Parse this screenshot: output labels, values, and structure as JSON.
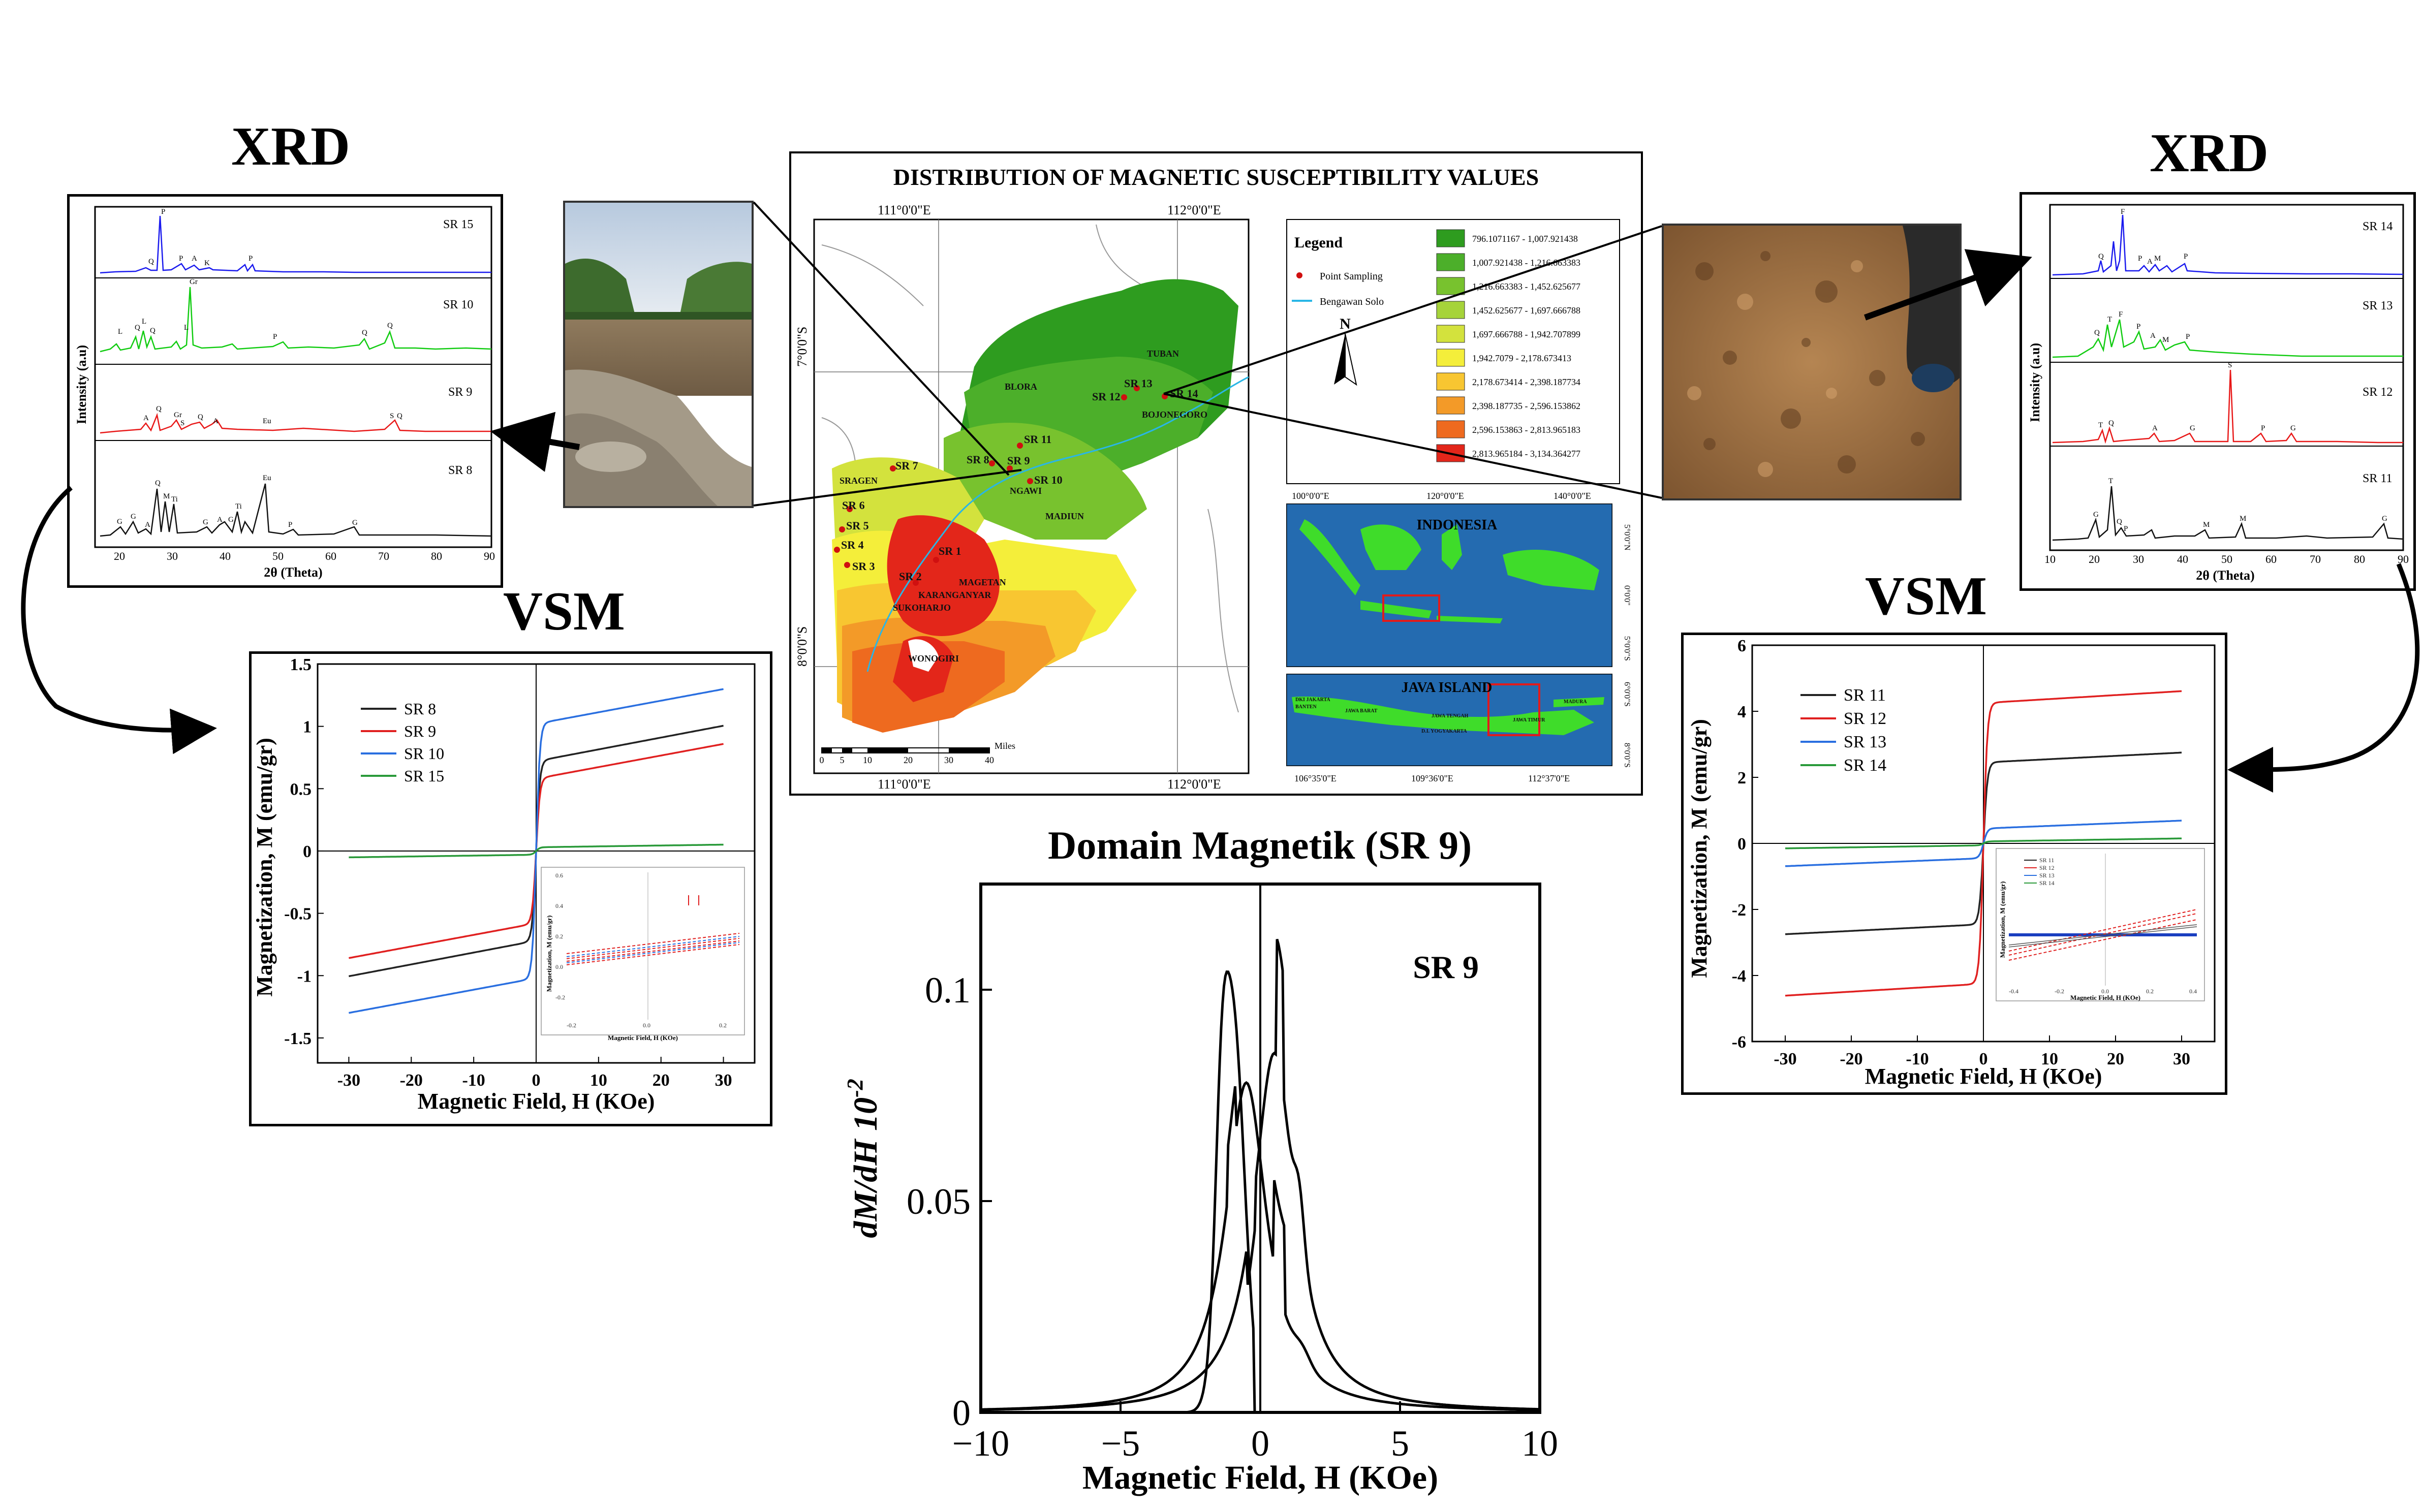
{
  "headings": {
    "xrd_left": "XRD",
    "xrd_right": "XRD",
    "vsm_left": "VSM",
    "vsm_right": "VSM",
    "domain": "Domain Magnetik (SR 9)"
  },
  "map": {
    "title": "DISTRIBUTION OF MAGNETIC SUSCEPTIBILITY VALUES",
    "lon_ticks": [
      "111°0'0\"E",
      "112°0'0\"E"
    ],
    "lat_ticks": [
      "7°0'0\"S",
      "8°0'0\"S"
    ],
    "legend_title": "Legend",
    "legend_point": "Point Sampling",
    "legend_river": "Bengawan Solo",
    "classes": [
      {
        "range": "796.1071167 - 1,007.921438",
        "color": "#2e9c1f"
      },
      {
        "range": "1,007.921438 - 1,216.663383",
        "color": "#4caf2a"
      },
      {
        "range": "1,216.663383 - 1,452.625677",
        "color": "#78c22e"
      },
      {
        "range": "1,452.625677 - 1,697.666788",
        "color": "#a6d33a"
      },
      {
        "range": "1,697.666788 - 1,942.707899",
        "color": "#d3e23d"
      },
      {
        "range": "1,942.7079 - 2,178.673413",
        "color": "#f4ee3a"
      },
      {
        "range": "2,178.673414 - 2,398.187734",
        "color": "#f8c631"
      },
      {
        "range": "2,398.187735 - 2,596.153862",
        "color": "#f39a28"
      },
      {
        "range": "2,596.153863 - 2,813.965183",
        "color": "#ee6a1f"
      },
      {
        "range": "2,813.965184 - 3,134.364277",
        "color": "#e3261a"
      }
    ],
    "places": [
      "TUBAN",
      "BLORA",
      "BOJONEGORO",
      "SRAGEN",
      "NGAWI",
      "MADIUN",
      "MAGETAN",
      "KARANGANYAR",
      "SUKOHARJO",
      "WONOGIRI"
    ],
    "samples": [
      "SR 1",
      "SR 2",
      "SR 3",
      "SR 4",
      "SR 5",
      "SR 6",
      "SR 7",
      "SR 8",
      "SR 9",
      "SR 10",
      "SR 11",
      "SR 12",
      "SR 13",
      "SR 14"
    ],
    "scale_label": "Miles",
    "scale_ticks": [
      "0",
      "5",
      "10",
      "20",
      "30",
      "40"
    ],
    "inset_indonesia": {
      "title": "INDONESIA",
      "lon_ticks": [
        "100°0'0\"E",
        "120°0'0\"E",
        "140°0'0\"E"
      ],
      "lat_ticks": [
        "5°0'0\"N",
        "0°0'0\"",
        "5°0'0\"S"
      ]
    },
    "inset_java": {
      "title": "JAVA ISLAND",
      "lon_ticks": [
        "106°35'0\"E",
        "109°36'0\"E",
        "112°37'0\"E"
      ],
      "lat_ticks": [
        "6°0'0\"S",
        "8°0'0\"S"
      ],
      "regions": [
        "DKI JAKARTA",
        "BANTEN",
        "JAWA BARAT",
        "JAWA TENGAH",
        "D.I. YOGYAKARTA",
        "JAWA TIMUR",
        "MADURA"
      ]
    }
  },
  "xrd_left": {
    "ylabel": "Intensity (a.u)",
    "xlabel": "2θ (Theta)",
    "x_ticks": [
      "20",
      "30",
      "40",
      "50",
      "60",
      "70",
      "80",
      "90"
    ],
    "series": [
      {
        "name": "SR 15",
        "color": "#1a1aee",
        "peaks_labels": [
          "Q",
          "P",
          "P",
          "A",
          "K",
          "P"
        ]
      },
      {
        "name": "SR 10",
        "color": "#11cc11",
        "peaks_labels": [
          "L",
          "Q",
          "L",
          "Q",
          "L",
          "Gr",
          "P",
          "Q",
          "Q"
        ]
      },
      {
        "name": "SR 9",
        "color": "#e81818",
        "peaks_labels": [
          "A",
          "Q",
          "Gr",
          "S",
          "Q",
          "A",
          "Eu",
          "S",
          "Q"
        ]
      },
      {
        "name": "SR 8",
        "color": "#111111",
        "peaks_labels": [
          "G",
          "G",
          "A",
          "Q",
          "M",
          "Ti",
          "G",
          "A",
          "G",
          "Ti",
          "Eu",
          "P",
          "G"
        ]
      }
    ]
  },
  "xrd_right": {
    "ylabel": "Intensity (a.u)",
    "xlabel": "2θ (Theta)",
    "x_ticks": [
      "10",
      "20",
      "30",
      "40",
      "50",
      "60",
      "70",
      "80",
      "90"
    ],
    "series": [
      {
        "name": "SR 14",
        "color": "#1a1aee",
        "peaks_labels": [
          "Q",
          "F",
          "P",
          "A",
          "M",
          "P"
        ]
      },
      {
        "name": "SR 13",
        "color": "#11cc11",
        "peaks_labels": [
          "Q",
          "T",
          "F",
          "P",
          "A",
          "M",
          "P"
        ]
      },
      {
        "name": "SR 12",
        "color": "#e81818",
        "peaks_labels": [
          "T",
          "Q",
          "A",
          "G",
          "S",
          "P",
          "G"
        ]
      },
      {
        "name": "SR 11",
        "color": "#111111",
        "peaks_labels": [
          "G",
          "T",
          "Q",
          "P",
          "M",
          "M",
          "G"
        ]
      }
    ]
  },
  "chart_data": [
    {
      "type": "line",
      "title": "VSM",
      "xlabel": "Magnetic Field, H (KOe)",
      "ylabel": "Magnetization, M (emu/gr)",
      "xlim": [
        -35,
        35
      ],
      "ylim": [
        -1.7,
        1.5
      ],
      "x_ticks": [
        -30,
        -20,
        -10,
        0,
        10,
        20,
        30
      ],
      "y_ticks": [
        -1.5,
        -1.0,
        -0.5,
        0.0,
        0.5,
        1.0,
        1.5
      ],
      "legend": "top-left",
      "series": [
        {
          "name": "SR 8",
          "color": "#222222",
          "ms": 0.72,
          "slope": 0.0095
        },
        {
          "name": "SR 9",
          "color": "#e02020",
          "ms": 0.58,
          "slope": 0.0093
        },
        {
          "name": "SR 10",
          "color": "#2a6fe0",
          "ms": 1.02,
          "slope": 0.0093
        },
        {
          "name": "SR 15",
          "color": "#2a9a3a",
          "ms": 0.03,
          "slope": 0.0007
        }
      ],
      "inset": {
        "xlabel": "Magnetic Field, H (KOe)",
        "ylabel": "Magnetization, M (emu/gr)",
        "x_ticks": [
          "-0.2",
          "0.0",
          "0.2"
        ],
        "y_ticks": [
          "0.6",
          "0.4",
          "0.2",
          "0.0",
          "-0.2"
        ]
      }
    },
    {
      "type": "line",
      "title": "VSM",
      "xlabel": "Magnetic Field, H (KOe)",
      "ylabel": "Magnetization, M (emu/gr)",
      "xlim": [
        -35,
        35
      ],
      "ylim": [
        -6,
        6
      ],
      "x_ticks": [
        -30,
        -20,
        -10,
        0,
        10,
        20,
        30
      ],
      "y_ticks": [
        -6,
        -4,
        -2,
        0,
        2,
        4,
        6
      ],
      "legend": "top-left",
      "series": [
        {
          "name": "SR 11",
          "color": "#222222",
          "ms": 2.45,
          "slope": 0.01
        },
        {
          "name": "SR 12",
          "color": "#e02020",
          "ms": 4.25,
          "slope": 0.012
        },
        {
          "name": "SR 13",
          "color": "#2a6fe0",
          "ms": 0.45,
          "slope": 0.008
        },
        {
          "name": "SR 14",
          "color": "#2a9a3a",
          "ms": 0.06,
          "slope": 0.003
        }
      ],
      "inset": {
        "xlabel": "Magnetic Field, H (KOe)",
        "ylabel": "Magnetization, M (emu/gr)",
        "x_ticks": [
          "-0.4",
          "-0.2",
          "0.0",
          "0.2",
          "0.4"
        ],
        "legend": [
          "SR 11",
          "SR 12",
          "SR 13",
          "SR 14"
        ]
      }
    },
    {
      "type": "line",
      "title": "Domain Magnetik (SR 9)",
      "xlabel": "Magnetic Field, H (KOe)",
      "ylabel": "dM/dH 10^-2",
      "xlim": [
        -10,
        10
      ],
      "ylim": [
        0,
        0.125
      ],
      "x_ticks": [
        -10,
        -5,
        0,
        5,
        10
      ],
      "y_ticks": [
        0,
        0.05,
        0.1
      ],
      "annotation": "SR 9"
    }
  ]
}
